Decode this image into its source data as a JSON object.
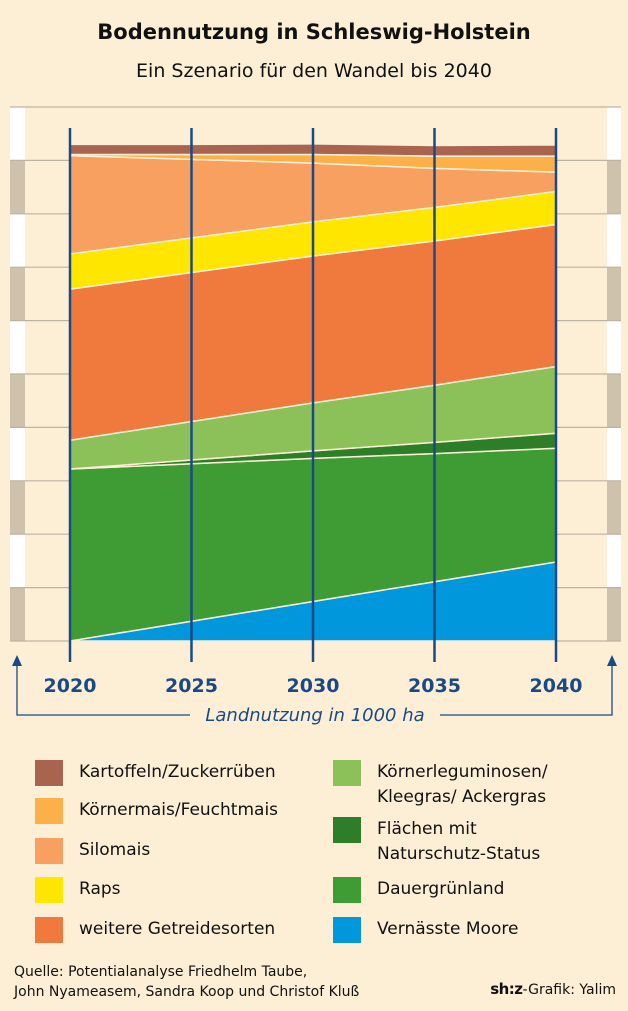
{
  "title": "Bodennutzung in Schleswig-Holstein",
  "subtitle": "Ein Szenario für den Wandel bis 2040",
  "chart_data": {
    "type": "area",
    "stacked": true,
    "title": "Bodennutzung in Schleswig-Holstein",
    "subtitle": "Ein Szenario für den Wandel bis 2040",
    "xlabel": "Landnutzung in 1000 ha",
    "x": [
      2020,
      2025,
      2030,
      2035,
      2040
    ],
    "ylim": [
      0,
      1000
    ],
    "ytick_step": 100,
    "grid": true,
    "legend_position": "bottom",
    "series": [
      {
        "name": "Vernässte Moore",
        "color": "#0097dc",
        "values": [
          0,
          37,
          74,
          111,
          148
        ]
      },
      {
        "name": "Dauergrünland",
        "color": "#3f9c35",
        "values": [
          322,
          295,
          268,
          240,
          213
        ]
      },
      {
        "name": "Flächen mit Naturschutz-Status",
        "color": "#2e7d28",
        "values": [
          0,
          7,
          14,
          21,
          28
        ]
      },
      {
        "name": "Körnerleguminosen/ Kleegras/ Ackergras",
        "color": "#8cc15a",
        "values": [
          54,
          72,
          90,
          107,
          125
        ]
      },
      {
        "name": "weitere Getreidesorten",
        "color": "#f07a3e",
        "values": [
          283,
          279,
          275,
          270,
          266
        ]
      },
      {
        "name": "Raps",
        "color": "#ffe600",
        "values": [
          66,
          65,
          64,
          63,
          62
        ]
      },
      {
        "name": "Silomais",
        "color": "#f7a060",
        "values": [
          184,
          147,
          110,
          73,
          36
        ]
      },
      {
        "name": "Körnermais/Feuchtmais",
        "color": "#fbb04a",
        "values": [
          2,
          9,
          16,
          23,
          30
        ]
      },
      {
        "name": "Kartoffeln/Zuckerrüben",
        "color": "#a8644e",
        "values": [
          19,
          19,
          20,
          20,
          21
        ]
      }
    ]
  },
  "colors": {
    "axis": "#1a4a85",
    "background": "#fdefd6",
    "ruler": "#cfc2ad"
  },
  "legend": {
    "left": [
      "Kartoffeln/Zuckerrüben",
      "Körnermais/Feuchtmais",
      "Silomais",
      "Raps",
      "weitere Getreidesorten"
    ],
    "right": [
      [
        "Körnerleguminosen/",
        "Kleegras/ Ackergras"
      ],
      [
        "Flächen mit",
        "Naturschutz-Status"
      ],
      [
        "Dauergrünland"
      ],
      [
        "Vernässte Moore"
      ]
    ]
  },
  "source": [
    "Quelle: Potentialanalyse Friedhelm Taube,",
    "John Nyameasem, Sandra Koop und Christof Kluß"
  ],
  "credit": {
    "logo": "sh:z",
    "text": "-Grafik: Yalim"
  }
}
